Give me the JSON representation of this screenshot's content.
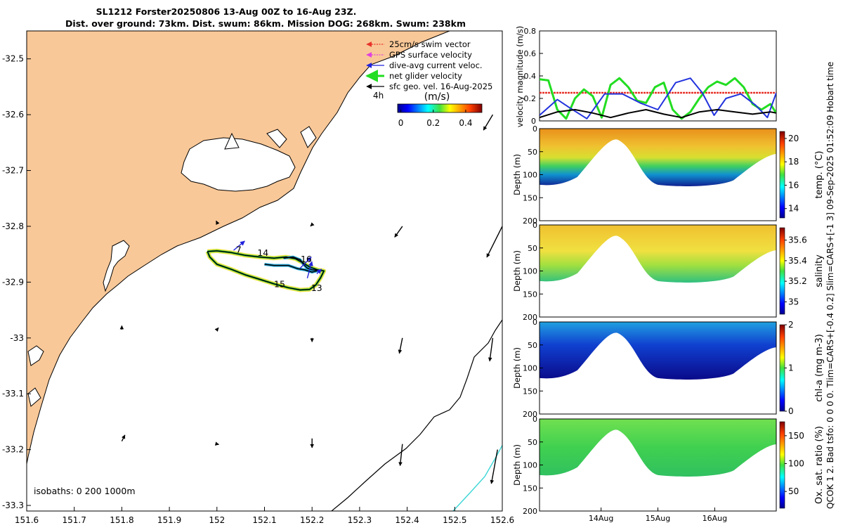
{
  "header": {
    "title_line1": "SL1212 Forster20250806 13-Aug 00Z to 16-Aug 23Z.",
    "title_line2": "Dist. over ground: 73km. Dist. swum: 86km. Mission DOG: 268km. Swum: 238km",
    "side_note": "QCOK 1  2. Bad tsfo: 0  0  0  0. Tlim=CARS+[-0.4 0.2] Slim=CARS+[-1 3] 09-Sep-2025 01:52:09 Hobart time"
  },
  "map": {
    "xlim": [
      151.6,
      152.6
    ],
    "ylim": [
      -33.31,
      -32.45
    ],
    "xticks": [
      151.6,
      151.7,
      151.8,
      151.9,
      152,
      152.1,
      152.2,
      152.3,
      152.4,
      152.5,
      152.6
    ],
    "yticks": [
      -32.5,
      -32.6,
      -32.7,
      -32.8,
      -32.9,
      -33.0,
      -33.1,
      -33.2,
      -33.3
    ],
    "xtick_labels": [
      "151.6",
      "151.7",
      "151.8",
      "151.9",
      "152",
      "152.1",
      "152.2",
      "152.3",
      "152.4",
      "152.5",
      "152.6"
    ],
    "ytick_labels": [
      "-32.5",
      "-32.6",
      "-32.7",
      "-32.8",
      "-32.9",
      "-33",
      "-33.1",
      "-33.2",
      "-33.3"
    ],
    "land_color": "#f9c898",
    "legend": [
      {
        "label": "25cm/s swim vector",
        "color": "#e8332a",
        "style": "dotted"
      },
      {
        "label": "GPS surface velocity",
        "color": "#e040e0",
        "style": "dotted"
      },
      {
        "label": "dive-avg current veloc.",
        "color": "#2222dd",
        "style": "solid"
      },
      {
        "label": "net glider velocity",
        "color": "#22dd22",
        "style": "thick"
      },
      {
        "label": "sfc geo. vel. 16-Aug-2025",
        "color": "#000000",
        "style": "solid"
      }
    ],
    "legend_4h": "4h",
    "colorbar_label": "(m/s)",
    "colorbar_ticks": [
      0,
      0.2,
      0.4
    ],
    "colorbar_tick_labels": [
      "0",
      "0.2",
      "0.4"
    ],
    "colorbar_range": [
      -0.02,
      0.5
    ],
    "isobaths_label": "isobaths: 0   200  1000m",
    "day_labels": [
      {
        "text": "7",
        "lon": 152.04,
        "lat": -32.847
      },
      {
        "text": "14",
        "lon": 152.085,
        "lat": -32.853
      },
      {
        "text": "16",
        "lon": 152.176,
        "lat": -32.864
      },
      {
        "text": "15",
        "lon": 152.12,
        "lat": -32.909
      },
      {
        "text": "13",
        "lon": 152.198,
        "lat": -32.916
      }
    ],
    "track": [
      [
        151.98,
        -32.845
      ],
      [
        152.0,
        -32.844
      ],
      [
        152.03,
        -32.847
      ],
      [
        152.06,
        -32.852
      ],
      [
        152.09,
        -32.855
      ],
      [
        152.12,
        -32.857
      ],
      [
        152.145,
        -32.855
      ],
      [
        152.165,
        -32.858
      ],
      [
        152.18,
        -32.865
      ],
      [
        152.195,
        -32.873
      ],
      [
        152.212,
        -32.878
      ],
      [
        152.225,
        -32.88
      ],
      [
        152.218,
        -32.892
      ],
      [
        152.208,
        -32.905
      ],
      [
        152.195,
        -32.913
      ],
      [
        152.175,
        -32.914
      ],
      [
        152.15,
        -32.91
      ],
      [
        152.12,
        -32.903
      ],
      [
        152.09,
        -32.895
      ],
      [
        152.06,
        -32.887
      ],
      [
        152.03,
        -32.877
      ],
      [
        152.0,
        -32.868
      ],
      [
        151.985,
        -32.855
      ],
      [
        151.98,
        -32.845
      ]
    ],
    "track_inner": [
      [
        152.14,
        -32.857
      ],
      [
        152.16,
        -32.855
      ],
      [
        152.175,
        -32.86
      ],
      [
        152.182,
        -32.868
      ],
      [
        152.19,
        -32.875
      ],
      [
        152.2,
        -32.878
      ],
      [
        152.215,
        -32.879
      ],
      [
        152.2,
        -32.882
      ],
      [
        152.185,
        -32.878
      ],
      [
        152.17,
        -32.876
      ],
      [
        152.16,
        -32.873
      ],
      [
        152.15,
        -32.87
      ],
      [
        152.12,
        -32.87
      ],
      [
        152.1,
        -32.868
      ]
    ],
    "current_arrows": [
      {
        "lon": 152.035,
        "lat": -32.843,
        "u": 0.12,
        "v": 0.1
      },
      {
        "lon": 152.175,
        "lat": -32.875,
        "u": 0.12,
        "v": 0.12
      },
      {
        "lon": 152.19,
        "lat": -32.893,
        "u": 0.05,
        "v": 0.18
      },
      {
        "lon": 152.21,
        "lat": -32.885,
        "u": 0.05,
        "v": 0.05
      }
    ],
    "geo_arrows": [
      {
        "lon": 152.58,
        "lat": -32.6,
        "u": -0.06,
        "v": -0.1
      },
      {
        "lon": 152.39,
        "lat": -32.8,
        "u": -0.05,
        "v": -0.07
      },
      {
        "lon": 152.6,
        "lat": -32.8,
        "u": -0.1,
        "v": -0.2
      },
      {
        "lon": 152.2,
        "lat": -32.797,
        "u": -0.01,
        "v": -0.01
      },
      {
        "lon": 152.0,
        "lat": -32.793,
        "u": -0.005,
        "v": 0.01
      },
      {
        "lon": 151.8,
        "lat": -32.985,
        "u": 0.0,
        "v": 0.025
      },
      {
        "lon": 152.0,
        "lat": -32.985,
        "u": 0.01,
        "v": 0.012
      },
      {
        "lon": 152.2,
        "lat": -33.0,
        "u": 0.0,
        "v": -0.025
      },
      {
        "lon": 152.39,
        "lat": -33.0,
        "u": -0.02,
        "v": -0.1
      },
      {
        "lon": 152.58,
        "lat": -33.0,
        "u": -0.02,
        "v": -0.15
      },
      {
        "lon": 151.8,
        "lat": -33.185,
        "u": 0.02,
        "v": 0.04
      },
      {
        "lon": 152.0,
        "lat": -33.19,
        "u": 0.012,
        "v": -0.003
      },
      {
        "lon": 152.2,
        "lat": -33.18,
        "u": 0.0,
        "v": -0.06
      },
      {
        "lon": 152.39,
        "lat": -33.19,
        "u": -0.015,
        "v": -0.14
      },
      {
        "lon": 152.59,
        "lat": -33.2,
        "u": -0.04,
        "v": -0.22
      }
    ]
  },
  "velocity_panel": {
    "ylabel": "velocity magnitude (m/s)",
    "ylim": [
      0,
      0.8
    ],
    "yticks": [
      0,
      0.2,
      0.4,
      0.6,
      0.8
    ],
    "ytick_labels": [
      "0",
      "0.2",
      "0.4",
      "0.6",
      "0.8"
    ],
    "series": [
      {
        "name": "swim speed",
        "color": "#e8332a",
        "style": "dotted",
        "t": [
          0,
          4
        ],
        "v": [
          0.25,
          0.25
        ]
      },
      {
        "name": "net glider velocity",
        "color": "#22dd22",
        "t": [
          0,
          0.15,
          0.3,
          0.45,
          0.6,
          0.75,
          0.9,
          1.05,
          1.2,
          1.35,
          1.5,
          1.65,
          1.8,
          1.95,
          2.1,
          2.25,
          2.4,
          2.55,
          2.7,
          2.85,
          3.0,
          3.15,
          3.3,
          3.45,
          3.6,
          3.75,
          3.9,
          4.0
        ],
        "v": [
          0.37,
          0.36,
          0.1,
          0.02,
          0.2,
          0.28,
          0.22,
          0.03,
          0.32,
          0.38,
          0.3,
          0.18,
          0.16,
          0.3,
          0.34,
          0.1,
          0.02,
          0.08,
          0.2,
          0.3,
          0.35,
          0.32,
          0.38,
          0.3,
          0.15,
          0.1,
          0.15,
          0.07
        ]
      },
      {
        "name": "dive-avg current",
        "color": "#2233dd",
        "t": [
          0,
          0.3,
          0.5,
          0.8,
          1.1,
          1.4,
          1.7,
          2.0,
          2.3,
          2.55,
          2.75,
          2.95,
          3.15,
          3.4,
          3.65,
          3.85,
          4.0
        ],
        "v": [
          0.05,
          0.19,
          0.12,
          0.02,
          0.24,
          0.24,
          0.16,
          0.1,
          0.34,
          0.38,
          0.25,
          0.05,
          0.2,
          0.24,
          0.14,
          0.03,
          0.25
        ]
      },
      {
        "name": "sfc geo vel",
        "color": "#000000",
        "t": [
          0,
          0.3,
          0.6,
          0.9,
          1.2,
          1.5,
          1.8,
          2.1,
          2.4,
          2.7,
          3.0,
          3.3,
          3.6,
          3.9,
          4.0
        ],
        "v": [
          0.03,
          0.08,
          0.1,
          0.07,
          0.03,
          0.07,
          0.1,
          0.06,
          0.03,
          0.08,
          0.1,
          0.08,
          0.06,
          0.08,
          0.07
        ]
      }
    ]
  },
  "sections": [
    {
      "name": "temperature",
      "label": "temp. (°C)",
      "cbar": [
        "14",
        "16",
        "18",
        "20"
      ],
      "cbar_range": [
        13.2,
        20.6
      ]
    },
    {
      "name": "salinity",
      "label": "salinity",
      "cbar": [
        "35",
        "35.2",
        "35.4",
        "35.6"
      ],
      "cbar_range": [
        34.88,
        35.72
      ]
    },
    {
      "name": "chlorophyll",
      "label": "chl-a (mg m-3)",
      "cbar": [
        "0",
        "1",
        "2"
      ],
      "cbar_range": [
        0,
        2.0
      ]
    },
    {
      "name": "oxygen",
      "label": "Ox. sat. ratio (%)",
      "cbar": [
        "50",
        "100",
        "150"
      ],
      "cbar_range": [
        20,
        175
      ]
    }
  ],
  "section_axis": {
    "ylabel": "Depth (m)",
    "depth_ticks": [
      "0",
      "50",
      "100",
      "150",
      "200"
    ],
    "time_labels": [
      "14Aug",
      "15Aug",
      "16Aug"
    ]
  }
}
